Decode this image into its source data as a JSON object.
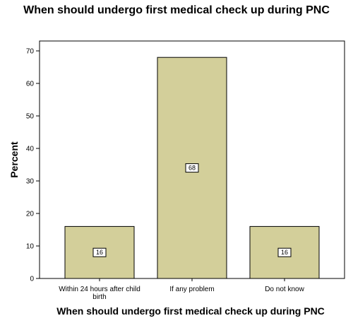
{
  "chart_data": {
    "type": "bar",
    "title": "When should undergo first medical check up during PNC",
    "xlabel": "When should undergo first medical check up during PNC",
    "ylabel": "Percent",
    "categories": [
      [
        "Within 24 hours after child",
        "birth"
      ],
      [
        "If any problem"
      ],
      [
        "Do not know"
      ]
    ],
    "values": [
      16,
      68,
      16
    ],
    "data_labels": [
      "16",
      "68",
      "16"
    ],
    "ylim": [
      0,
      70
    ],
    "yticks": [
      0,
      10,
      20,
      30,
      40,
      50,
      60,
      70
    ],
    "grid": false,
    "bar_color": "#d3cf9a",
    "bar_stroke": "#000000"
  }
}
